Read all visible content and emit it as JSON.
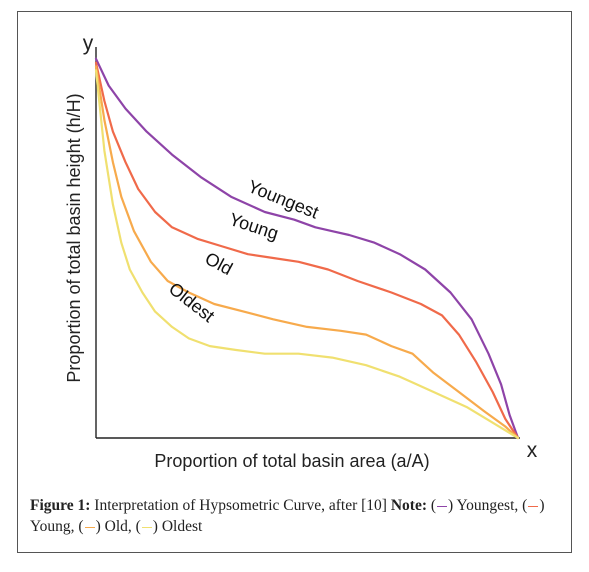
{
  "chart_data": {
    "type": "line",
    "xlabel": "Proportion of total basin area (a/A)",
    "ylabel": "Proportion of total basin height (h/H)",
    "x_axis_name": "x",
    "y_axis_name": "y",
    "xlim": [
      0,
      1
    ],
    "ylim": [
      0,
      1
    ],
    "grid": false,
    "series": [
      {
        "name": "Youngest",
        "color": "#8e44a8",
        "x": [
          0,
          0.03,
          0.07,
          0.12,
          0.18,
          0.25,
          0.32,
          0.4,
          0.47,
          0.52,
          0.56,
          0.6,
          0.66,
          0.72,
          0.78,
          0.84,
          0.89,
          0.93,
          0.96,
          0.98,
          1.0
        ],
        "y": [
          0.99,
          0.92,
          0.86,
          0.8,
          0.74,
          0.68,
          0.63,
          0.59,
          0.57,
          0.55,
          0.54,
          0.53,
          0.51,
          0.48,
          0.44,
          0.38,
          0.31,
          0.22,
          0.14,
          0.06,
          0
        ]
      },
      {
        "name": "Young",
        "color": "#f06a4a",
        "x": [
          0,
          0.02,
          0.04,
          0.07,
          0.1,
          0.14,
          0.18,
          0.24,
          0.3,
          0.36,
          0.42,
          0.48,
          0.55,
          0.62,
          0.7,
          0.77,
          0.82,
          0.86,
          0.9,
          0.94,
          0.97,
          1.0
        ],
        "y": [
          0.98,
          0.88,
          0.8,
          0.72,
          0.65,
          0.59,
          0.55,
          0.52,
          0.5,
          0.48,
          0.47,
          0.46,
          0.44,
          0.41,
          0.38,
          0.35,
          0.32,
          0.27,
          0.2,
          0.12,
          0.05,
          0
        ]
      },
      {
        "name": "Old",
        "color": "#f7aa4c",
        "x": [
          0,
          0.02,
          0.04,
          0.06,
          0.09,
          0.13,
          0.17,
          0.22,
          0.28,
          0.35,
          0.42,
          0.5,
          0.58,
          0.64,
          0.7,
          0.75,
          0.8,
          0.86,
          0.92,
          0.97,
          1.0
        ],
        "y": [
          0.97,
          0.83,
          0.72,
          0.63,
          0.54,
          0.46,
          0.41,
          0.38,
          0.35,
          0.33,
          0.31,
          0.29,
          0.28,
          0.27,
          0.24,
          0.22,
          0.17,
          0.12,
          0.07,
          0.03,
          0
        ]
      },
      {
        "name": "Oldest",
        "color": "#f0e070",
        "x": [
          0,
          0.02,
          0.04,
          0.06,
          0.08,
          0.11,
          0.14,
          0.18,
          0.22,
          0.27,
          0.33,
          0.4,
          0.48,
          0.56,
          0.64,
          0.72,
          0.8,
          0.88,
          0.94,
          1.0
        ],
        "y": [
          0.96,
          0.75,
          0.61,
          0.51,
          0.44,
          0.38,
          0.33,
          0.29,
          0.26,
          0.24,
          0.23,
          0.22,
          0.22,
          0.21,
          0.19,
          0.16,
          0.12,
          0.08,
          0.04,
          0
        ]
      }
    ],
    "annotations": [
      "Youngest",
      "Young",
      "Old",
      "Oldest"
    ]
  },
  "caption": {
    "label": "Figure 1:",
    "text": "Interpretation of Hypsometric Curve, after [10]",
    "note_label": "Note:",
    "legend": [
      "Youngest,",
      "Young,",
      "Old,",
      "Oldest"
    ]
  }
}
